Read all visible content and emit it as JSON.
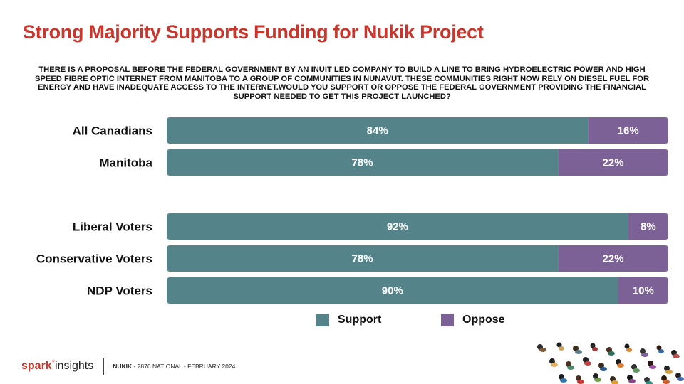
{
  "title": "Strong Majority Supports Funding for Nukik Project",
  "question": "THERE IS A PROPOSAL BEFORE THE FEDERAL GOVERNMENT BY AN INUIT LED COMPANY TO BUILD A LINE TO BRING HYDROELECTRIC POWER AND HIGH SPEED FIBRE OPTIC INTERNET FROM MANITOBA TO A GROUP OF COMMUNITIES IN NUNAVUT. THESE COMMUNITIES RIGHT NOW RELY ON DIESEL FUEL FOR ENERGY AND HAVE INADEQUATE ACCESS TO THE INTERNET.WOULD YOU SUPPORT OR OPPOSE THE FEDERAL GOVERNMENT PROVIDING THE FINANCIAL SUPPORT NEEDED TO GET THIS PROJECT LAUNCHED?",
  "colors": {
    "support": "#54838a",
    "oppose": "#7c6196",
    "title": "#c8372d"
  },
  "chart_data": {
    "type": "bar",
    "orientation": "horizontal",
    "stacked": true,
    "categories": [
      "All Canadians",
      "Manitoba",
      "Liberal Voters",
      "Conservative Voters",
      "NDP Voters"
    ],
    "series": [
      {
        "name": "Support",
        "values": [
          84,
          78,
          92,
          78,
          90
        ],
        "labels": [
          "84%",
          "78%",
          "92%",
          "78%",
          "90%"
        ]
      },
      {
        "name": "Oppose",
        "values": [
          16,
          22,
          8,
          22,
          10
        ],
        "labels": [
          "16%",
          "22%",
          "8%",
          "22%",
          "10%"
        ]
      }
    ],
    "xlim": [
      0,
      100
    ],
    "legend": "bottom",
    "grid": false
  },
  "legend": {
    "support": "Support",
    "oppose": "Oppose"
  },
  "footer": {
    "logo_part1": "spark",
    "logo_star": "*",
    "logo_part2": "insights",
    "project": "NUKIK",
    "details": " - 2876 NATIONAL - FEBRUARY 2024"
  }
}
